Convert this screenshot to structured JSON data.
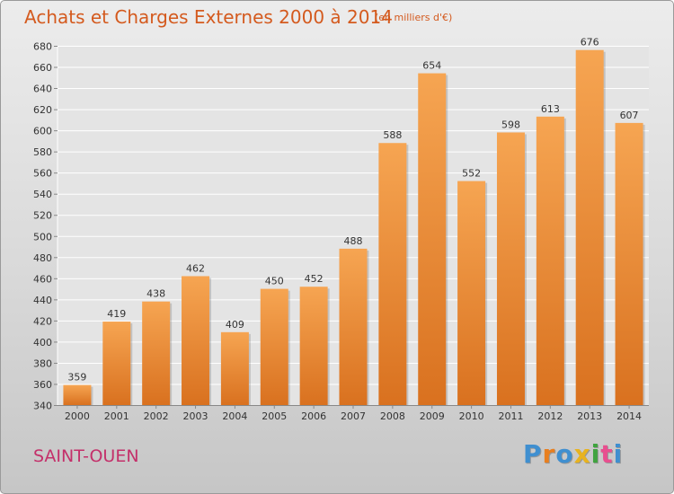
{
  "header": {
    "title": "Achats et Charges Externes 2000 à 2014",
    "unit": "(en milliers d'€)"
  },
  "footer": {
    "location": "SAINT-OUEN",
    "logo_text": "Proxiti"
  },
  "colors": {
    "title": "#d45a1e",
    "location": "#c4306a",
    "bar_light": "#f6a552",
    "bar_dark": "#d9711f",
    "logo": [
      "#3f8fd0",
      "#e87f1f",
      "#3f8fd0",
      "#e8b31f",
      "#3fa33f",
      "#e84f8f",
      "#3f8fd0"
    ]
  },
  "chart_data": {
    "type": "bar",
    "categories": [
      "2000",
      "2001",
      "2002",
      "2003",
      "2004",
      "2005",
      "2006",
      "2007",
      "2008",
      "2009",
      "2010",
      "2011",
      "2012",
      "2013",
      "2014"
    ],
    "values": [
      359,
      419,
      438,
      462,
      409,
      450,
      452,
      488,
      588,
      654,
      552,
      598,
      613,
      676,
      607
    ],
    "ylim": [
      340,
      680
    ],
    "yticks": [
      340,
      360,
      380,
      400,
      420,
      440,
      460,
      480,
      500,
      520,
      540,
      560,
      580,
      600,
      620,
      640,
      660,
      680
    ],
    "grid": true
  }
}
